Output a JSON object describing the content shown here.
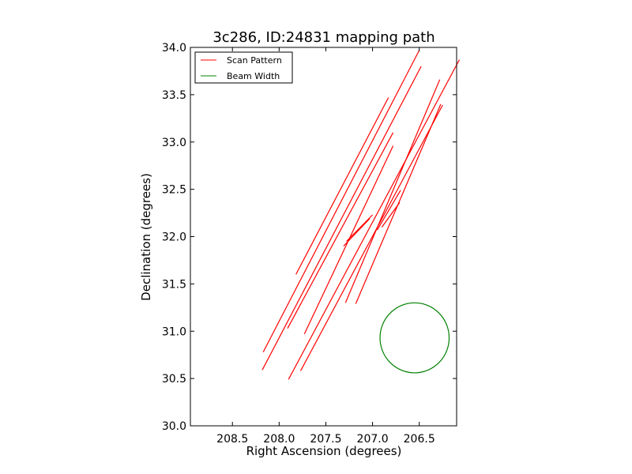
{
  "chart_data": {
    "type": "line",
    "title": "3c286, ID:24831 mapping path",
    "xlabel": "Right Ascension (degrees)",
    "ylabel": "Declination (degrees)",
    "xlim": [
      208.95,
      206.1
    ],
    "ylim": [
      30.0,
      34.0
    ],
    "x_inverted": true,
    "grid": false,
    "legend_position": "top-left",
    "xticks": [
      208.5,
      208.0,
      207.5,
      207.0,
      206.5
    ],
    "xtick_labels": [
      "208.5",
      "208.0",
      "207.5",
      "207.0",
      "206.5"
    ],
    "yticks": [
      30.0,
      30.5,
      31.0,
      31.5,
      32.0,
      32.5,
      33.0,
      33.5,
      34.0
    ],
    "ytick_labels": [
      "30.0",
      "30.5",
      "31.0",
      "31.5",
      "32.0",
      "32.5",
      "33.0",
      "33.5",
      "34.0"
    ],
    "series": [
      {
        "name": "Scan Pattern",
        "color": "#ff0000",
        "segments": [
          [
            [
              207.82,
              31.6
            ],
            [
              206.83,
              33.47
            ]
          ],
          [
            [
              208.17,
              30.78
            ],
            [
              206.5,
              33.97
            ]
          ],
          [
            [
              208.18,
              30.59
            ],
            [
              206.48,
              33.8
            ]
          ],
          [
            [
              207.91,
              31.03
            ],
            [
              206.78,
              33.1
            ]
          ],
          [
            [
              207.9,
              30.49
            ],
            [
              206.07,
              33.87
            ]
          ],
          [
            [
              207.77,
              30.58
            ],
            [
              206.25,
              33.39
            ]
          ],
          [
            [
              207.73,
              30.97
            ],
            [
              206.78,
              32.96
            ]
          ],
          [
            [
              207.29,
              31.3
            ],
            [
              206.28,
              33.66
            ]
          ],
          [
            [
              207.18,
              31.29
            ],
            [
              206.27,
              33.4
            ]
          ],
          [
            [
              207.31,
              31.9
            ],
            [
              207.03,
              32.19
            ]
          ],
          [
            [
              207.28,
              31.95
            ],
            [
              207.0,
              32.23
            ]
          ],
          [
            [
              206.95,
              32.07
            ],
            [
              206.7,
              32.49
            ]
          ],
          [
            [
              206.9,
              32.1
            ],
            [
              206.71,
              32.36
            ]
          ]
        ]
      },
      {
        "name": "Beam Width",
        "color": "#008000",
        "shape": "circle",
        "center": [
          206.55,
          30.93
        ],
        "radius_ra": 0.37,
        "radius_dec": 0.37
      }
    ]
  }
}
